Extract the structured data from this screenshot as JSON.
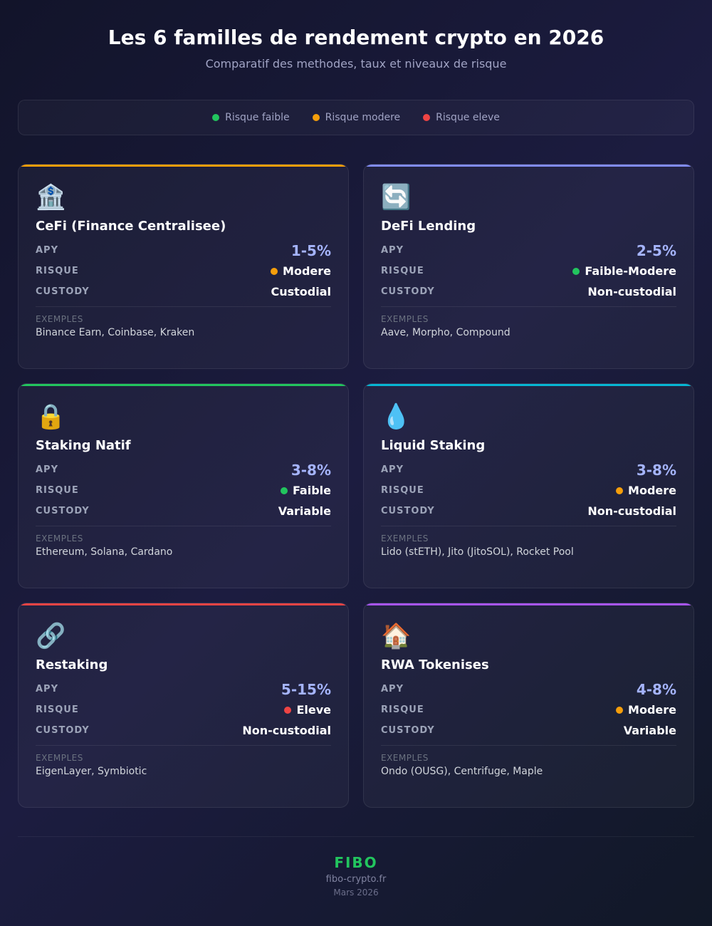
{
  "header": {
    "title": "Les 6 familles de rendement crypto en 2026",
    "subtitle": "Comparatif des methodes, taux et niveaux de risque"
  },
  "legend": [
    {
      "label": "Risque faible",
      "color": "#22c55e"
    },
    {
      "label": "Risque modere",
      "color": "#f59e0b"
    },
    {
      "label": "Risque eleve",
      "color": "#ef4444"
    }
  ],
  "field_labels": {
    "apy": "APY",
    "risk": "RISQUE",
    "custody": "CUSTODY",
    "examples": "EXEMPLES"
  },
  "cards": [
    {
      "icon": "🏦",
      "title": "CeFi (Finance Centralisee)",
      "apy": "1-5%",
      "risk": "Modere",
      "risk_color": "#f59e0b",
      "custody": "Custodial",
      "examples": "Binance Earn, Coinbase, Kraken",
      "accent": "#f59e0b"
    },
    {
      "icon": "🔄",
      "title": "DeFi Lending",
      "apy": "2-5%",
      "risk": "Faible-Modere",
      "risk_color": "#22c55e",
      "custody": "Non-custodial",
      "examples": "Aave, Morpho, Compound",
      "accent": "#818cf8"
    },
    {
      "icon": "🔒",
      "title": "Staking Natif",
      "apy": "3-8%",
      "risk": "Faible",
      "risk_color": "#22c55e",
      "custody": "Variable",
      "examples": "Ethereum, Solana, Cardano",
      "accent": "#22c55e"
    },
    {
      "icon": "💧",
      "title": "Liquid Staking",
      "apy": "3-8%",
      "risk": "Modere",
      "risk_color": "#f59e0b",
      "custody": "Non-custodial",
      "examples": "Lido (stETH), Jito (JitoSOL), Rocket Pool",
      "accent": "#06b6d4"
    },
    {
      "icon": "🔗",
      "title": "Restaking",
      "apy": "5-15%",
      "risk": "Eleve",
      "risk_color": "#ef4444",
      "custody": "Non-custodial",
      "examples": "EigenLayer, Symbiotic",
      "accent": "#ef4444"
    },
    {
      "icon": "🏠",
      "title": "RWA Tokenises",
      "apy": "4-8%",
      "risk": "Modere",
      "risk_color": "#f59e0b",
      "custody": "Variable",
      "examples": "Ondo (OUSG), Centrifuge, Maple",
      "accent": "#a855f7"
    }
  ],
  "footer": {
    "brand": "FIBO",
    "site": "fibo-crypto.fr",
    "date": "Mars 2026"
  }
}
